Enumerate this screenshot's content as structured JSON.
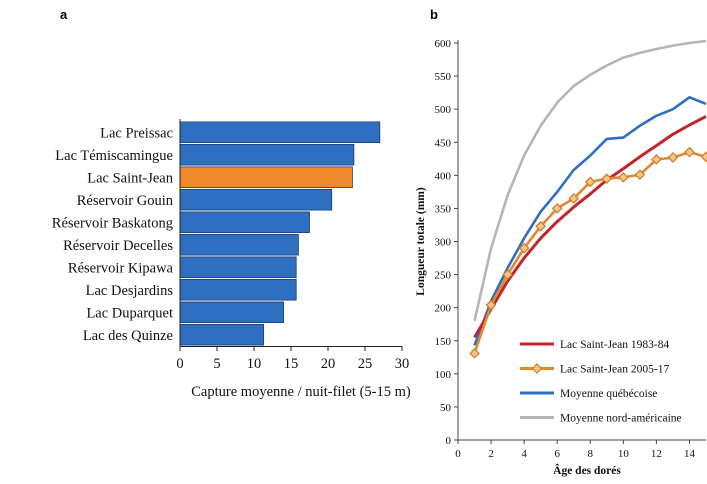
{
  "chart_data": [
    {
      "panel": "a",
      "type": "bar",
      "orientation": "horizontal",
      "categories": [
        "Lac Preissac",
        "Lac Témiscamingue",
        "Lac Saint-Jean",
        "Réservoir Gouin",
        "Réservoir Baskatong",
        "Réservoir Decelles",
        "Réservoir Kipawa",
        "Lac Desjardins",
        "Lac Duparquet",
        "Lac des Quinze"
      ],
      "values": [
        27,
        23.5,
        23.3,
        20.5,
        17.5,
        16,
        15.7,
        15.7,
        14,
        11.3
      ],
      "highlight": "Lac Saint-Jean",
      "colors": {
        "bar": "#2e6fc2",
        "highlight": "#ee8a2d",
        "bar_edge": "#1a3f73"
      },
      "xlabel": "Capture moyenne / nuit-filet (5-15 m)",
      "xlim": [
        0,
        30
      ],
      "xticks": [
        0,
        5,
        10,
        15,
        20,
        25,
        30
      ],
      "grid": false
    },
    {
      "panel": "b",
      "type": "line",
      "xlabel": "Âge des dorés",
      "ylabel": "Longueur totale (mm)",
      "xlim": [
        0,
        15
      ],
      "ylim": [
        0,
        600
      ],
      "xticks": [
        0,
        2,
        4,
        6,
        8,
        10,
        12,
        14
      ],
      "yticks": [
        0,
        50,
        100,
        150,
        200,
        250,
        300,
        350,
        400,
        450,
        500,
        550,
        600
      ],
      "grid": false,
      "legend_position": "bottom-right",
      "series": [
        {
          "name": "Lac Saint-Jean 1983-84",
          "color": "#c0262c",
          "marker": "none",
          "x": [
            1,
            2,
            3,
            4,
            5,
            6,
            7,
            8,
            9,
            10,
            11,
            12,
            13,
            14,
            15
          ],
          "y": [
            155,
            198,
            240,
            275,
            305,
            330,
            352,
            372,
            393,
            410,
            428,
            445,
            462,
            476,
            489
          ]
        },
        {
          "name": "Lac Saint-Jean 2005-17",
          "color": "#e08a2e",
          "marker": "diamond",
          "x": [
            1,
            2,
            3,
            4,
            5,
            6,
            7,
            8,
            9,
            10,
            11,
            12,
            13,
            14,
            15
          ],
          "y": [
            131,
            204,
            250,
            290,
            323,
            350,
            365,
            390,
            395,
            397,
            401,
            424,
            427,
            435,
            428
          ]
        },
        {
          "name": "Moyenne québécoise",
          "color": "#2e6fc2",
          "marker": "none",
          "x": [
            1,
            2,
            3,
            4,
            5,
            6,
            7,
            8,
            9,
            10,
            11,
            12,
            13,
            14,
            15
          ],
          "y": [
            143,
            210,
            260,
            305,
            345,
            375,
            408,
            430,
            455,
            457,
            475,
            490,
            500,
            518,
            508
          ]
        },
        {
          "name": "Moyenne nord-américaine",
          "color": "#b5b5b5",
          "marker": "none",
          "x": [
            1,
            2,
            3,
            4,
            5,
            6,
            7,
            8,
            9,
            10,
            11,
            12,
            13,
            14,
            15
          ],
          "y": [
            180,
            290,
            370,
            430,
            475,
            510,
            535,
            552,
            566,
            578,
            585,
            591,
            596,
            600,
            603
          ]
        }
      ]
    }
  ]
}
